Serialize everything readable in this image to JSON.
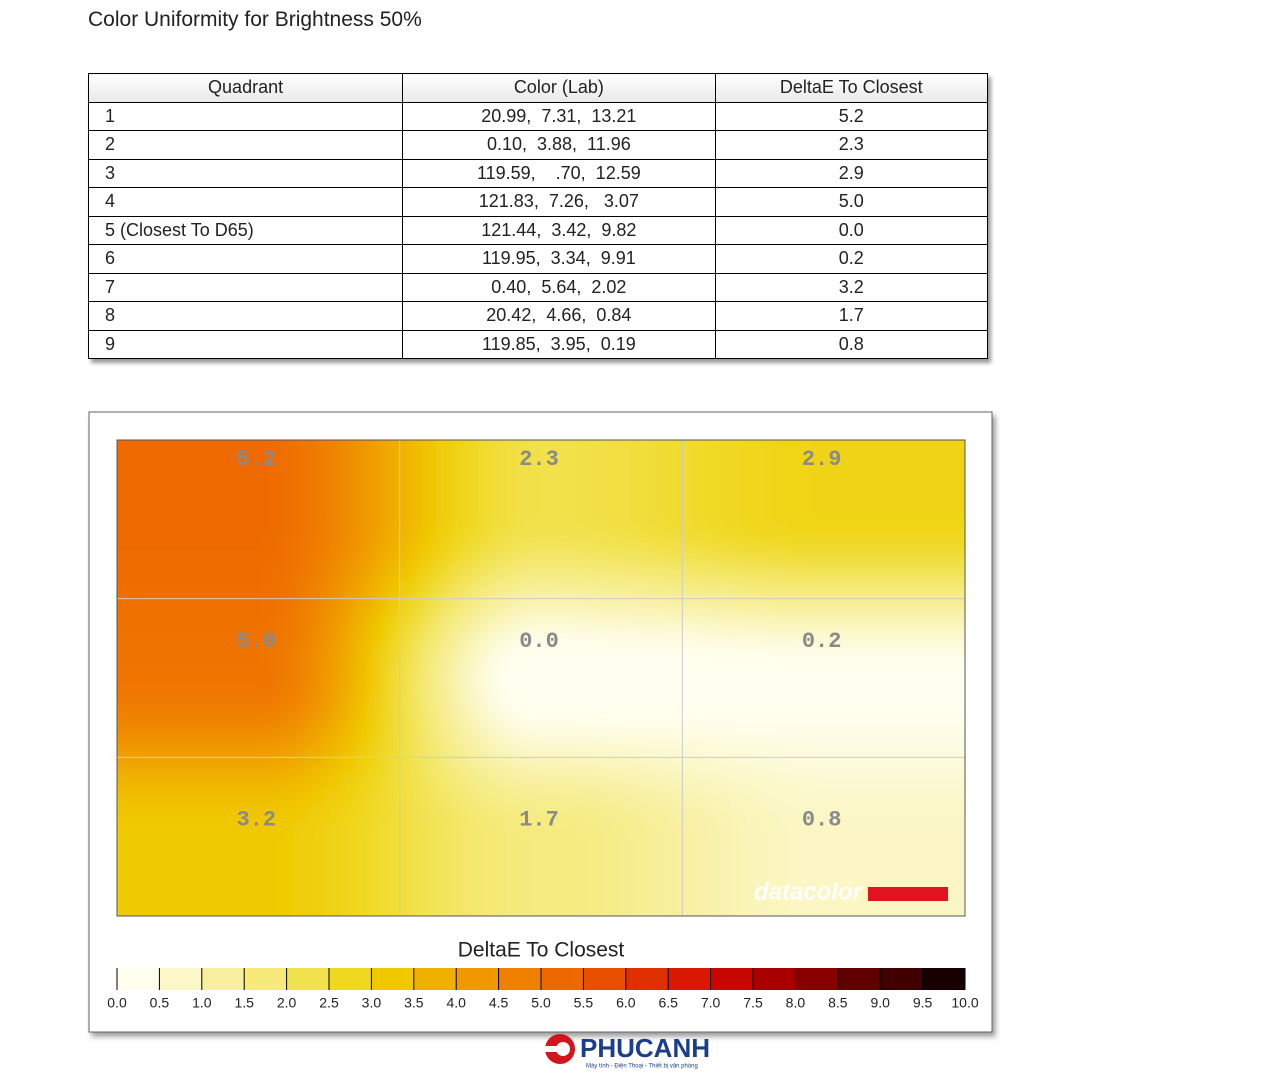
{
  "title": "Color Uniformity for Brightness 50%",
  "table": {
    "header": [
      "Quadrant",
      "Color (Lab)",
      "DeltaE To Closest"
    ],
    "rows": [
      [
        "1",
        "20.99,  7.31,  13.21",
        "5.2"
      ],
      [
        "2",
        "0.10,  3.88,  11.96",
        "2.3"
      ],
      [
        "3",
        "119.59,    .70,  12.59",
        "2.9"
      ],
      [
        "4",
        "121.83,  7.26,   3.07",
        "5.0"
      ],
      [
        "5 (Closest To D65)",
        "121.44,  3.42,  9.82",
        "0.0"
      ],
      [
        "6",
        "119.95,  3.34,  9.91",
        "0.2"
      ],
      [
        "7",
        "0.40,  5.64,  2.02",
        "3.2"
      ],
      [
        "8",
        "20.42,  4.66,  0.84",
        "1.7"
      ],
      [
        "9",
        "119.85,  3.95,  0.19",
        "0.8"
      ]
    ]
  },
  "heatmap": {
    "cells": [
      [
        "5.2",
        "2.3",
        "2.9"
      ],
      [
        "5.0",
        "0.0",
        "0.2"
      ],
      [
        "3.2",
        "1.7",
        "0.8"
      ]
    ],
    "watermark": "datacolor"
  },
  "legend": {
    "title": "DeltaE To Closest",
    "ticks": [
      "0.0",
      "0.5",
      "1.0",
      "1.5",
      "2.0",
      "2.5",
      "3.0",
      "3.5",
      "4.0",
      "4.5",
      "5.0",
      "5.5",
      "6.0",
      "6.5",
      "7.0",
      "7.5",
      "8.0",
      "8.5",
      "9.0",
      "9.5",
      "10.0"
    ],
    "colors": [
      "#fffff0",
      "#fbf7c8",
      "#f8f0a0",
      "#f5ea7a",
      "#f2e250",
      "#f0d820",
      "#f0c800",
      "#f0b000",
      "#f09800",
      "#f08000",
      "#ee6800",
      "#e85000",
      "#e03000",
      "#d81800",
      "#c80800",
      "#a80000",
      "#880000",
      "#600000",
      "#400000",
      "#180000"
    ]
  },
  "logo": {
    "name": "PHUCANH",
    "tagline": "Máy tính - Điện Thoại - Thiết bị văn phòng"
  }
}
